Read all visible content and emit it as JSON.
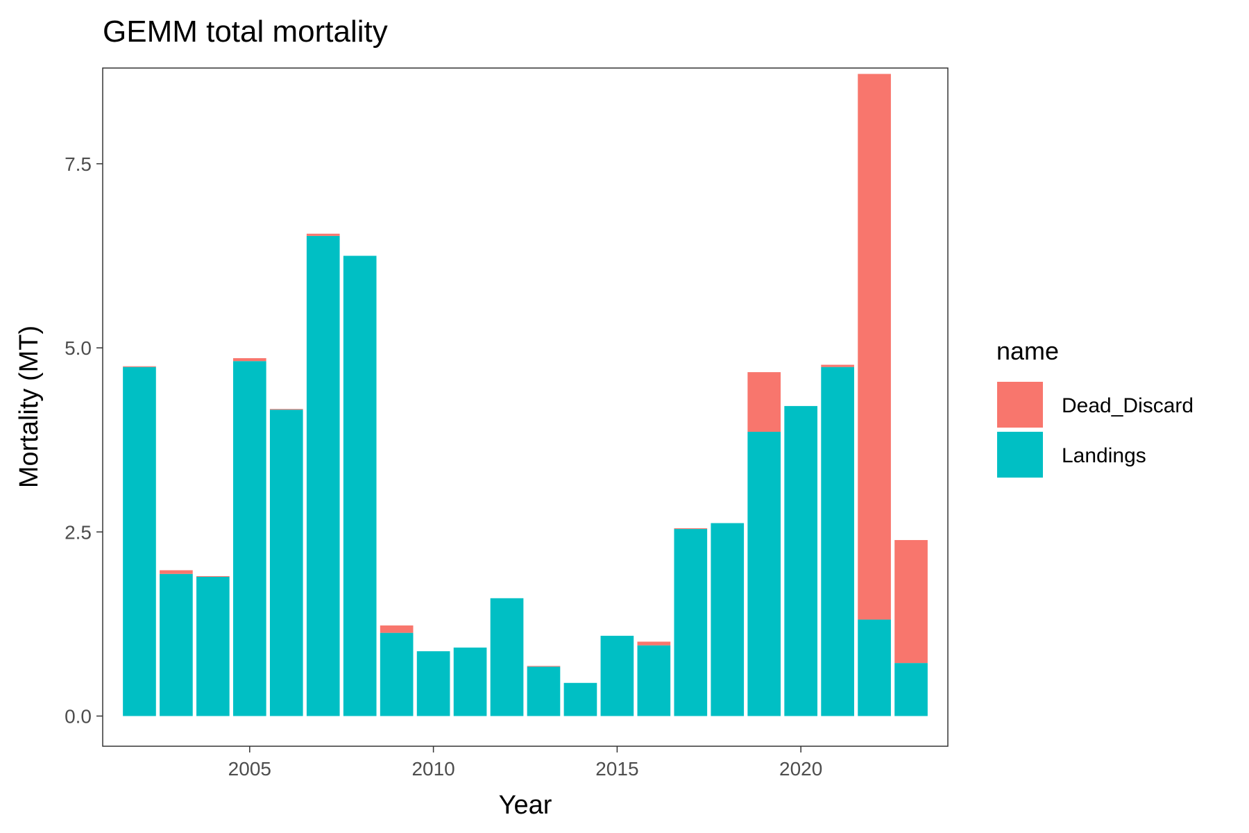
{
  "chart_data": {
    "type": "bar",
    "stacked": true,
    "title": "GEMM total mortality",
    "xlabel": "Year",
    "ylabel": "Mortality (MT)",
    "xlim": [
      2001.0,
      2024.0
    ],
    "ylim": [
      -0.41,
      8.8
    ],
    "x_ticks": [
      2005,
      2010,
      2015,
      2020
    ],
    "y_ticks": [
      0.0,
      2.5,
      5.0,
      7.5
    ],
    "y_tick_labels": [
      "0.0",
      "2.5",
      "5.0",
      "7.5"
    ],
    "x_tick_labels": [
      "2005",
      "2010",
      "2015",
      "2020"
    ],
    "grid": false,
    "legend": {
      "title": "name",
      "placement": "right"
    },
    "categories": [
      2002,
      2003,
      2004,
      2005,
      2006,
      2007,
      2008,
      2009,
      2010,
      2011,
      2012,
      2013,
      2014,
      2015,
      2016,
      2017,
      2018,
      2019,
      2020,
      2021,
      2022,
      2023
    ],
    "series": [
      {
        "name": "Dead_Discard",
        "color": "#F8766D",
        "values": [
          0.01,
          0.05,
          0.01,
          0.04,
          0.01,
          0.03,
          0.0,
          0.1,
          0.0,
          0.0,
          0.0,
          0.01,
          0.0,
          0.0,
          0.05,
          0.01,
          0.0,
          0.81,
          0.0,
          0.03,
          7.41,
          1.67
        ]
      },
      {
        "name": "Landings",
        "color": "#00BFC4",
        "values": [
          4.74,
          1.93,
          1.89,
          4.82,
          4.16,
          6.52,
          6.25,
          1.13,
          0.88,
          0.93,
          1.6,
          0.67,
          0.45,
          1.09,
          0.96,
          2.54,
          2.62,
          3.86,
          4.21,
          4.74,
          1.31,
          0.72
        ]
      }
    ]
  }
}
